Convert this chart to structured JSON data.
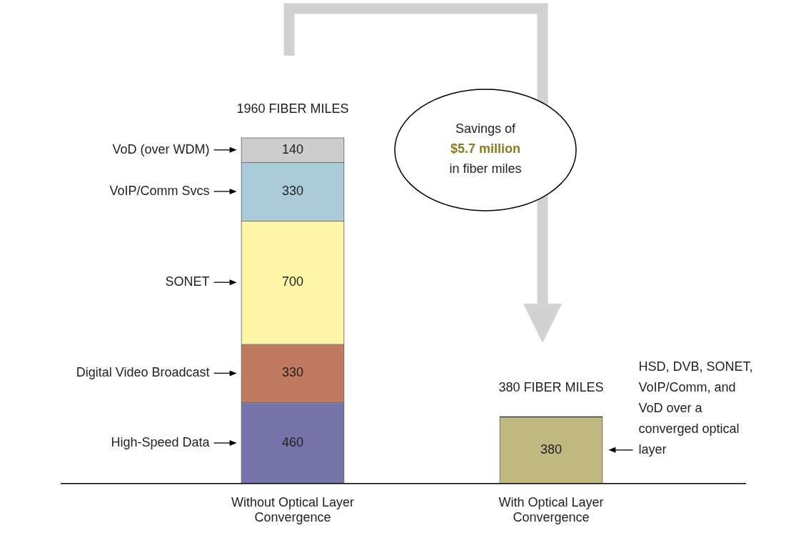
{
  "chart_data": {
    "type": "bar",
    "stacked": true,
    "data_labels": true,
    "legend": false,
    "categories": [
      "Without Optical Layer Convergence",
      "With Optical Layer Convergence"
    ],
    "series": [
      {
        "name": "High-Speed Data",
        "color": "#7573a9",
        "values": [
          460,
          null
        ]
      },
      {
        "name": "Digital Video Broadcast",
        "color": "#bf7a5f",
        "values": [
          330,
          null
        ]
      },
      {
        "name": "SONET",
        "color": "#fdf6a6",
        "values": [
          700,
          null
        ]
      },
      {
        "name": "VoIP/Comm Svcs",
        "color": "#a9cad9",
        "values": [
          330,
          null
        ]
      },
      {
        "name": "VoD (over WDM)",
        "color": "#cdcdcd",
        "values": [
          140,
          null
        ]
      },
      {
        "name": "HSD, DVB, SONET, VoIP/Comm, and VoD over a converged optical layer",
        "color": "#bfb880",
        "values": [
          null,
          380
        ]
      }
    ],
    "totals": [
      "1960 FIBER MILES",
      "380 FIBER MILES"
    ],
    "annotations": [
      "Savings of",
      "$5.7 million",
      "in fiber miles"
    ]
  }
}
